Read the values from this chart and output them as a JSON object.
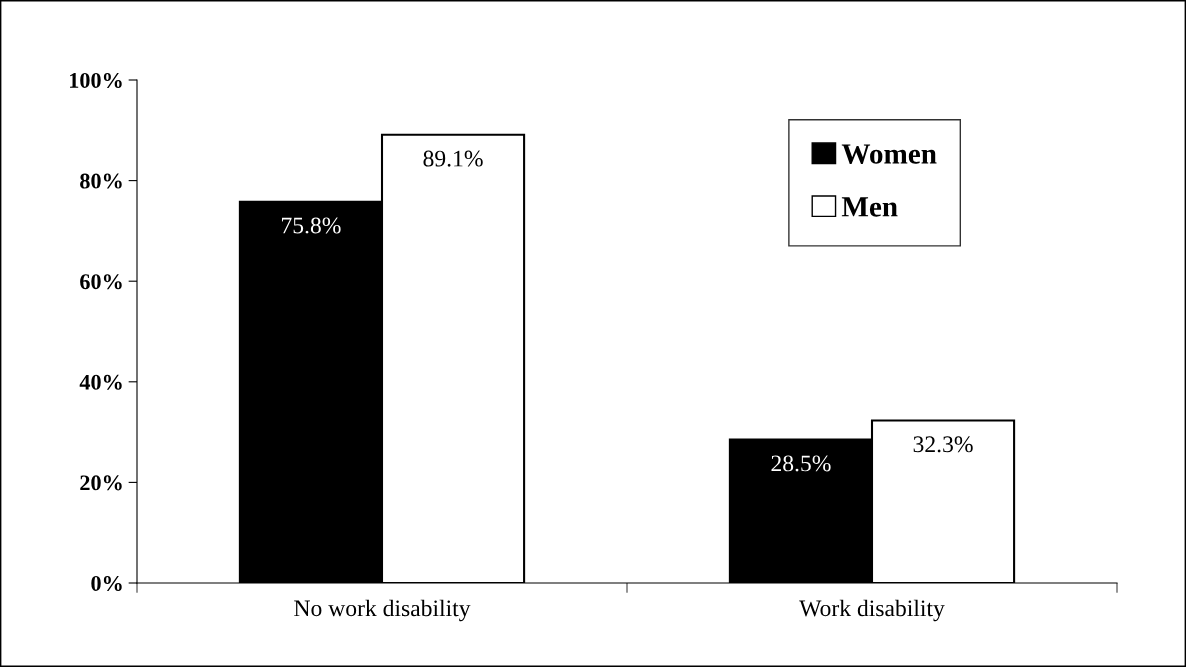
{
  "chart_data": {
    "type": "bar",
    "categories": [
      "No work disability",
      "Work disability"
    ],
    "series": [
      {
        "name": "Women",
        "color": "#000000",
        "values": [
          75.8,
          28.5
        ],
        "value_labels": [
          "75.8%",
          "28.5%"
        ]
      },
      {
        "name": "Men",
        "color": "#ffffff",
        "values": [
          89.1,
          32.3
        ],
        "value_labels": [
          "89.1%",
          "32.3%"
        ]
      }
    ],
    "ylim": [
      0,
      100
    ],
    "yticks": [
      {
        "value": 0,
        "label": "0%"
      },
      {
        "value": 20,
        "label": "20%"
      },
      {
        "value": 40,
        "label": "40%"
      },
      {
        "value": 60,
        "label": "60%"
      },
      {
        "value": 80,
        "label": "80%"
      },
      {
        "value": 100,
        "label": "100%"
      }
    ],
    "grid": false,
    "legend": "top right"
  }
}
